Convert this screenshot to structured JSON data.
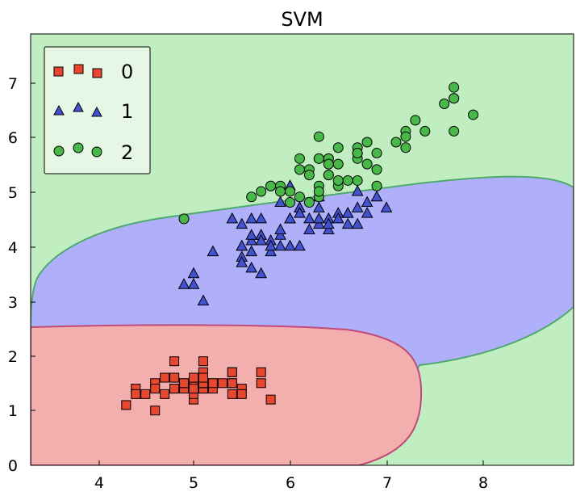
{
  "chart_data": {
    "type": "scatter",
    "title": "SVM",
    "xlabel": "",
    "ylabel": "",
    "xlim": [
      3.3,
      8.9
    ],
    "ylim": [
      0,
      7.9
    ],
    "xticks": [
      "4",
      "5",
      "6",
      "7",
      "8"
    ],
    "yticks": [
      "0",
      "1",
      "2",
      "3",
      "4",
      "5",
      "6",
      "7"
    ],
    "grid": false,
    "legend": {
      "placement": "top-left",
      "entries": [
        "0",
        "1",
        "2"
      ]
    },
    "regions": [
      {
        "name": "0",
        "color": "#f3aeae"
      },
      {
        "name": "1",
        "color": "#b0b0fa"
      },
      {
        "name": "2",
        "color": "#c1eec1"
      }
    ],
    "series": [
      {
        "name": "0",
        "marker": "square",
        "color": "#e8462e",
        "points": [
          [
            5.1,
            1.4
          ],
          [
            4.9,
            1.4
          ],
          [
            4.7,
            1.3
          ],
          [
            4.6,
            1.5
          ],
          [
            5.0,
            1.4
          ],
          [
            5.4,
            1.7
          ],
          [
            4.6,
            1.4
          ],
          [
            5.0,
            1.5
          ],
          [
            4.4,
            1.4
          ],
          [
            4.9,
            1.5
          ],
          [
            5.4,
            1.5
          ],
          [
            4.8,
            1.6
          ],
          [
            4.8,
            1.4
          ],
          [
            4.3,
            1.1
          ],
          [
            5.8,
            1.2
          ],
          [
            5.7,
            1.5
          ],
          [
            5.4,
            1.3
          ],
          [
            5.1,
            1.4
          ],
          [
            5.7,
            1.7
          ],
          [
            5.1,
            1.5
          ],
          [
            5.4,
            1.7
          ],
          [
            5.1,
            1.5
          ],
          [
            4.6,
            1.0
          ],
          [
            5.1,
            1.7
          ],
          [
            4.8,
            1.9
          ],
          [
            5.0,
            1.6
          ],
          [
            5.0,
            1.6
          ],
          [
            5.2,
            1.5
          ],
          [
            5.2,
            1.4
          ],
          [
            4.7,
            1.6
          ],
          [
            4.8,
            1.6
          ],
          [
            5.4,
            1.5
          ],
          [
            5.2,
            1.5
          ],
          [
            5.5,
            1.4
          ],
          [
            4.9,
            1.5
          ],
          [
            5.0,
            1.2
          ],
          [
            5.5,
            1.3
          ],
          [
            4.4,
            1.3
          ],
          [
            5.1,
            1.5
          ],
          [
            5.0,
            1.3
          ],
          [
            4.5,
            1.3
          ],
          [
            5.0,
            1.6
          ],
          [
            5.1,
            1.9
          ],
          [
            4.8,
            1.4
          ],
          [
            5.1,
            1.6
          ],
          [
            5.3,
            1.5
          ],
          [
            5.0,
            1.4
          ]
        ]
      },
      {
        "name": "1",
        "marker": "triangle",
        "color": "#4352cf",
        "points": [
          [
            7.0,
            4.7
          ],
          [
            6.4,
            4.5
          ],
          [
            6.9,
            4.9
          ],
          [
            5.5,
            4.0
          ],
          [
            6.5,
            4.6
          ],
          [
            5.7,
            4.5
          ],
          [
            6.3,
            4.7
          ],
          [
            4.9,
            3.3
          ],
          [
            6.6,
            4.6
          ],
          [
            5.2,
            3.9
          ],
          [
            5.0,
            3.5
          ],
          [
            5.9,
            4.2
          ],
          [
            6.0,
            4.0
          ],
          [
            6.1,
            4.7
          ],
          [
            5.6,
            3.6
          ],
          [
            6.7,
            4.4
          ],
          [
            5.6,
            4.5
          ],
          [
            5.8,
            4.1
          ],
          [
            6.2,
            4.5
          ],
          [
            5.6,
            3.9
          ],
          [
            5.9,
            4.8
          ],
          [
            6.1,
            4.0
          ],
          [
            6.3,
            4.9
          ],
          [
            6.1,
            4.7
          ],
          [
            6.4,
            4.3
          ],
          [
            6.6,
            4.4
          ],
          [
            6.8,
            4.8
          ],
          [
            6.7,
            5.0
          ],
          [
            6.0,
            4.5
          ],
          [
            5.7,
            3.5
          ],
          [
            5.5,
            3.8
          ],
          [
            5.5,
            3.7
          ],
          [
            5.8,
            3.9
          ],
          [
            6.0,
            5.1
          ],
          [
            5.4,
            4.5
          ],
          [
            6.0,
            4.5
          ],
          [
            6.7,
            4.7
          ],
          [
            6.3,
            4.4
          ],
          [
            5.6,
            4.1
          ],
          [
            5.5,
            4.0
          ],
          [
            5.5,
            4.4
          ],
          [
            6.1,
            4.6
          ],
          [
            5.8,
            4.0
          ],
          [
            5.0,
            3.3
          ],
          [
            5.6,
            4.2
          ],
          [
            5.7,
            4.2
          ],
          [
            5.7,
            4.2
          ],
          [
            6.2,
            4.3
          ],
          [
            5.1,
            3.0
          ],
          [
            5.7,
            4.1
          ],
          [
            5.9,
            4.0
          ],
          [
            6.8,
            4.6
          ],
          [
            6.5,
            4.5
          ],
          [
            6.3,
            4.5
          ],
          [
            5.9,
            4.3
          ],
          [
            6.6,
            4.6
          ],
          [
            6.4,
            4.4
          ]
        ]
      },
      {
        "name": "2",
        "marker": "circle",
        "color": "#48b848",
        "points": [
          [
            6.3,
            6.0
          ],
          [
            5.8,
            5.1
          ],
          [
            7.1,
            5.9
          ],
          [
            6.3,
            5.6
          ],
          [
            6.5,
            5.8
          ],
          [
            7.6,
            6.6
          ],
          [
            4.9,
            4.5
          ],
          [
            7.3,
            6.3
          ],
          [
            6.7,
            5.8
          ],
          [
            7.2,
            6.1
          ],
          [
            6.5,
            5.1
          ],
          [
            6.4,
            5.3
          ],
          [
            6.8,
            5.5
          ],
          [
            5.7,
            5.0
          ],
          [
            5.8,
            5.1
          ],
          [
            6.4,
            5.3
          ],
          [
            6.5,
            5.5
          ],
          [
            7.7,
            6.7
          ],
          [
            7.7,
            6.9
          ],
          [
            6.0,
            5.0
          ],
          [
            6.9,
            5.7
          ],
          [
            5.6,
            4.9
          ],
          [
            7.7,
            6.7
          ],
          [
            6.3,
            4.9
          ],
          [
            6.7,
            5.7
          ],
          [
            7.2,
            6.0
          ],
          [
            6.2,
            4.8
          ],
          [
            6.1,
            4.9
          ],
          [
            6.4,
            5.6
          ],
          [
            7.2,
            5.8
          ],
          [
            7.4,
            6.1
          ],
          [
            7.9,
            6.4
          ],
          [
            6.4,
            5.6
          ],
          [
            6.3,
            5.1
          ],
          [
            6.1,
            5.6
          ],
          [
            7.7,
            6.1
          ],
          [
            6.3,
            5.6
          ],
          [
            6.4,
            5.5
          ],
          [
            6.0,
            4.8
          ],
          [
            6.9,
            5.4
          ],
          [
            6.7,
            5.6
          ],
          [
            6.9,
            5.1
          ],
          [
            6.8,
            5.9
          ],
          [
            6.7,
            5.7
          ],
          [
            6.7,
            5.2
          ],
          [
            6.3,
            5.0
          ],
          [
            6.5,
            5.2
          ],
          [
            6.2,
            5.4
          ],
          [
            5.9,
            5.1
          ],
          [
            6.1,
            5.4
          ],
          [
            5.9,
            5.0
          ],
          [
            6.2,
            5.3
          ],
          [
            6.6,
            5.2
          ]
        ]
      }
    ]
  }
}
